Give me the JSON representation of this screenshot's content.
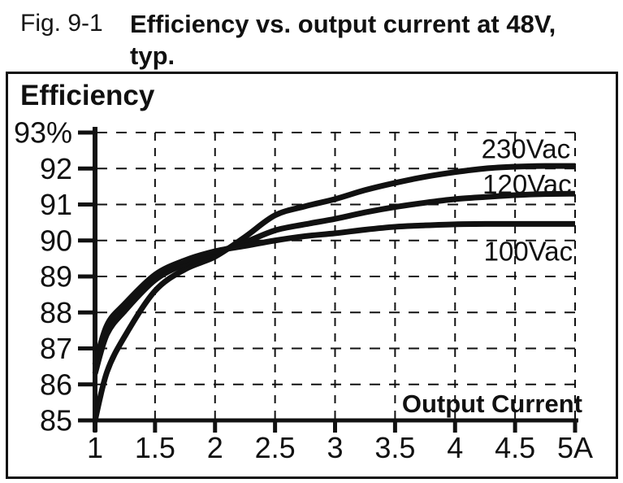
{
  "figure": {
    "label": "Fig. 9-1",
    "title_line1": "Efficiency vs. output current at 48V,",
    "title_line2": "typ."
  },
  "chart_data": {
    "type": "line",
    "title": "Efficiency",
    "xlabel": "Output Current",
    "ylabel": "Efficiency",
    "xlim": [
      1,
      5
    ],
    "ylim": [
      85,
      93
    ],
    "grid": "dashed",
    "legend_position": "inline-right",
    "line_color": "#111111",
    "x_ticks": [
      {
        "v": 1,
        "label": "1"
      },
      {
        "v": 1.5,
        "label": "1.5"
      },
      {
        "v": 2,
        "label": "2"
      },
      {
        "v": 2.5,
        "label": "2.5"
      },
      {
        "v": 3,
        "label": "3"
      },
      {
        "v": 3.5,
        "label": "3.5"
      },
      {
        "v": 4,
        "label": "4"
      },
      {
        "v": 4.5,
        "label": "4.5"
      },
      {
        "v": 5,
        "label": "5A"
      }
    ],
    "y_ticks": [
      {
        "v": 93,
        "label": "93%"
      },
      {
        "v": 92,
        "label": "92"
      },
      {
        "v": 91,
        "label": "91"
      },
      {
        "v": 90,
        "label": "90"
      },
      {
        "v": 89,
        "label": "89"
      },
      {
        "v": 88,
        "label": "88"
      },
      {
        "v": 87,
        "label": "87"
      },
      {
        "v": 86,
        "label": "86"
      },
      {
        "v": 85,
        "label": "85"
      }
    ],
    "x_sample": [
      1,
      1.1,
      1.25,
      1.5,
      1.75,
      2,
      2.25,
      2.5,
      2.75,
      3,
      3.25,
      3.5,
      3.75,
      4,
      4.25,
      4.5,
      4.75,
      5
    ],
    "series": [
      {
        "name": "230Vac",
        "values": [
          85.0,
          86.35,
          87.35,
          88.6,
          89.2,
          89.55,
          90.1,
          90.7,
          90.95,
          91.15,
          91.4,
          91.6,
          91.77,
          91.9,
          92.0,
          92.05,
          92.07,
          92.07
        ],
        "label_pos": {
          "x": 4.59,
          "y": 92.55
        }
      },
      {
        "name": "120Vac",
        "values": [
          86.3,
          87.4,
          88.05,
          88.9,
          89.35,
          89.65,
          89.95,
          90.28,
          90.45,
          90.6,
          90.78,
          90.93,
          91.05,
          91.15,
          91.21,
          91.26,
          91.29,
          91.3
        ],
        "label_pos": {
          "x": 4.6,
          "y": 91.56
        }
      },
      {
        "name": "100Vac",
        "values": [
          86.55,
          87.65,
          88.25,
          89.05,
          89.45,
          89.7,
          89.85,
          90.0,
          90.12,
          90.2,
          90.3,
          90.38,
          90.42,
          90.45,
          90.46,
          90.46,
          90.46,
          90.46
        ],
        "label_pos": {
          "x": 4.61,
          "y": 89.7
        }
      }
    ]
  }
}
